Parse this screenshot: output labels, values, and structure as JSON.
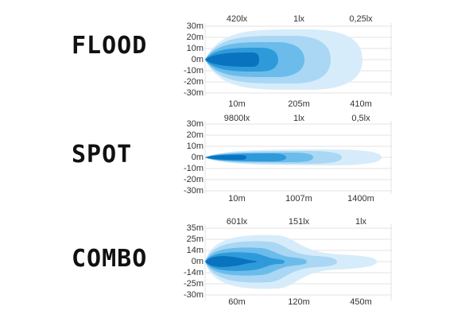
{
  "panels": [
    {
      "title": "FLOOD",
      "top_labels": [
        "420lx",
        "1lx",
        "0,25lx"
      ],
      "bottom_labels": [
        "10m",
        "205m",
        "410m"
      ],
      "y_labels": [
        "30m",
        "20m",
        "10m",
        "0m",
        "-10m",
        "-20m",
        "-30m"
      ]
    },
    {
      "title": "SPOT",
      "top_labels": [
        "9800lx",
        "1lx",
        "0,5lx"
      ],
      "bottom_labels": [
        "10m",
        "1007m",
        "1400m"
      ],
      "y_labels": [
        "30m",
        "20m",
        "10m",
        "0m",
        "-10m",
        "-20m",
        "-30m"
      ]
    },
    {
      "title": "COMBO",
      "top_labels": [
        "601lx",
        "151lx",
        "1lx"
      ],
      "bottom_labels": [
        "60m",
        "120m",
        "450m"
      ],
      "y_labels": [
        "35m",
        "25m",
        "14m",
        "0m",
        "-14m",
        "-25m",
        "-30m"
      ]
    }
  ],
  "colors": {
    "beam_levels": [
      "#d7ecfa",
      "#a9d7f4",
      "#6bbceb",
      "#2f9ad9",
      "#0a73c0"
    ],
    "grid": "#e3e3e3",
    "text": "#333333"
  }
}
